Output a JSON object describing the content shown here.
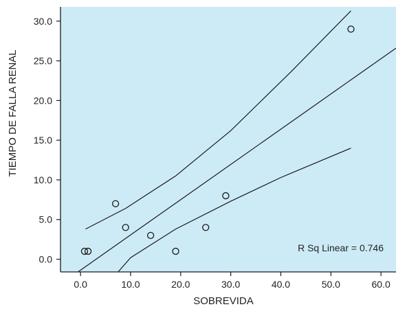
{
  "colors": {
    "plot_background": "#cdebf7",
    "axis": "#1a1a1a",
    "line": "#1a1a1a",
    "marker": "#1a1a1a"
  },
  "chart_data": {
    "type": "scatter",
    "xlabel": "SOBREVIDA",
    "ylabel": "TIEMPO DE FALLA RENAL",
    "xlim": [
      -4,
      63
    ],
    "ylim": [
      -1.6,
      31.8
    ],
    "x_ticks": [
      "0.0",
      "10.0",
      "20.0",
      "30.0",
      "40.0",
      "50.0",
      "60.0"
    ],
    "y_ticks": [
      "0.0",
      "5.0",
      "10.0",
      "15.0",
      "20.0",
      "25.0",
      "30.0"
    ],
    "grid": false,
    "annotation": "R Sq Linear = 0.746",
    "points": [
      {
        "x": 0.8,
        "y": 1.0
      },
      {
        "x": 1.5,
        "y": 1.0
      },
      {
        "x": 7.0,
        "y": 7.0
      },
      {
        "x": 9.0,
        "y": 4.0
      },
      {
        "x": 14.0,
        "y": 3.0
      },
      {
        "x": 19.0,
        "y": 1.0
      },
      {
        "x": 25.0,
        "y": 4.0
      },
      {
        "x": 29.0,
        "y": 8.0
      },
      {
        "x": 54.0,
        "y": 29.0
      }
    ],
    "fit_line": [
      {
        "x": -0.5,
        "y": -1.6
      },
      {
        "x": 63.0,
        "y": 26.6
      }
    ],
    "upper_ci": [
      {
        "x": 1.0,
        "y": 3.8
      },
      {
        "x": 9.0,
        "y": 6.4
      },
      {
        "x": 19.0,
        "y": 10.5
      },
      {
        "x": 30.0,
        "y": 16.2
      },
      {
        "x": 42.0,
        "y": 23.6
      },
      {
        "x": 54.0,
        "y": 31.3
      }
    ],
    "lower_ci": [
      {
        "x": 7.5,
        "y": -1.6
      },
      {
        "x": 10.0,
        "y": 0.2
      },
      {
        "x": 19.0,
        "y": 3.8
      },
      {
        "x": 30.0,
        "y": 7.3
      },
      {
        "x": 40.0,
        "y": 10.3
      },
      {
        "x": 54.0,
        "y": 14.0
      }
    ]
  }
}
